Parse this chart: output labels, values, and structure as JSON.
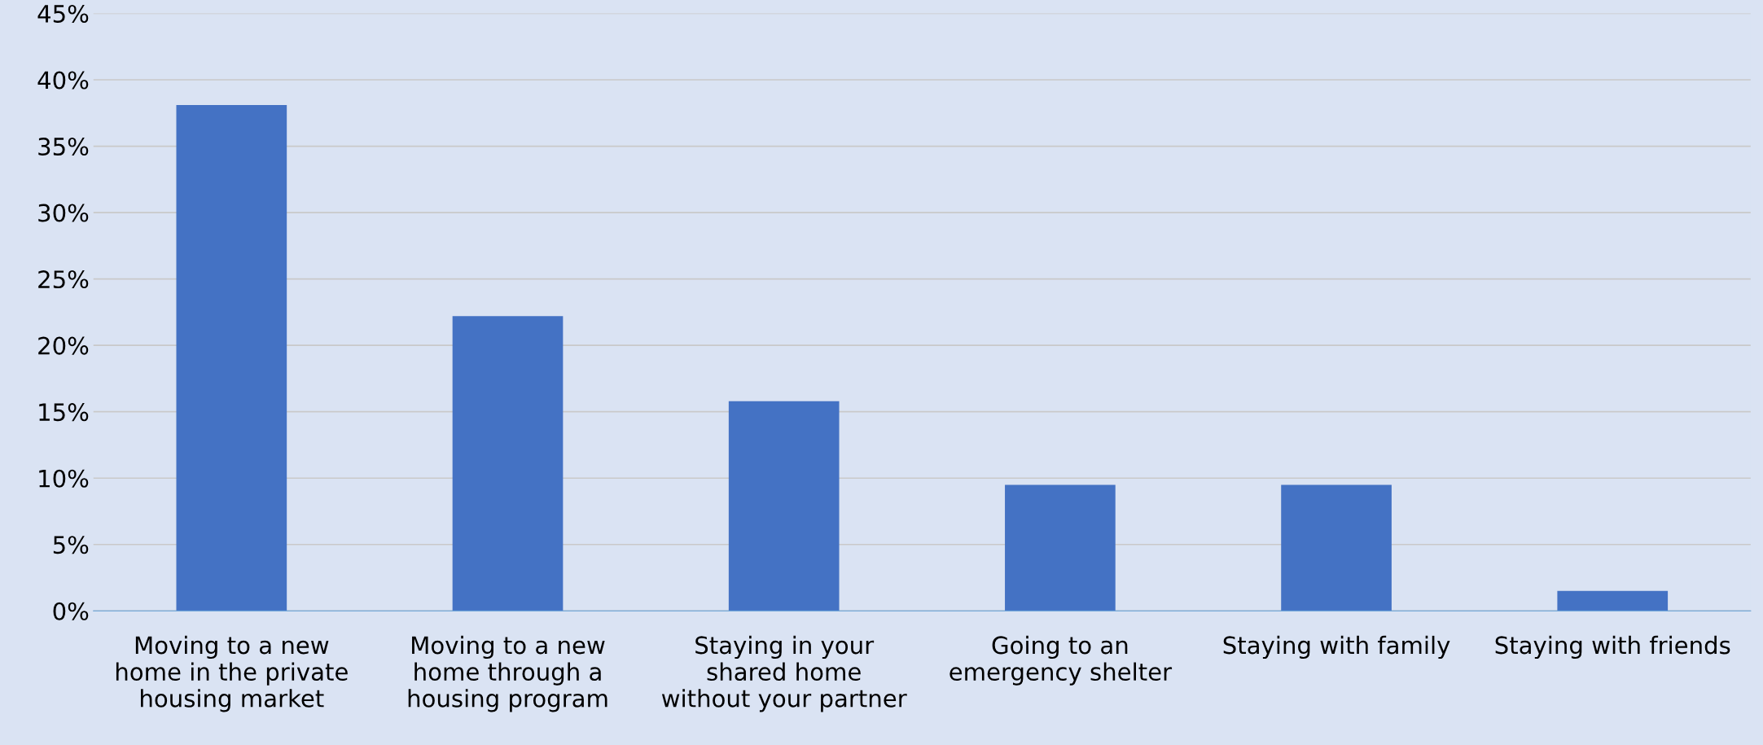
{
  "chart_data": {
    "type": "bar",
    "categories": [
      "Moving to a new\nhome in the private\nhousing market",
      "Moving to a new\nhome through a\nhousing program",
      "Staying in your\nshared home\nwithout your partner",
      "Going to an\nemergency shelter",
      "Staying with family",
      "Staying with friends"
    ],
    "values": [
      38.1,
      22.2,
      15.8,
      9.5,
      9.5,
      1.5
    ],
    "color": "#4472c4",
    "ylim": [
      0,
      45
    ],
    "yticks": [
      {
        "value": 0,
        "label": "0%"
      },
      {
        "value": 5,
        "label": "5%"
      },
      {
        "value": 10,
        "label": "10%"
      },
      {
        "value": 15,
        "label": "15%"
      },
      {
        "value": 20,
        "label": "20%"
      },
      {
        "value": 25,
        "label": "25%"
      },
      {
        "value": 30,
        "label": "30%"
      },
      {
        "value": 35,
        "label": "35%"
      },
      {
        "value": 40,
        "label": "40%"
      },
      {
        "value": 45,
        "label": "45%"
      }
    ],
    "grid": "y",
    "legend": false
  }
}
